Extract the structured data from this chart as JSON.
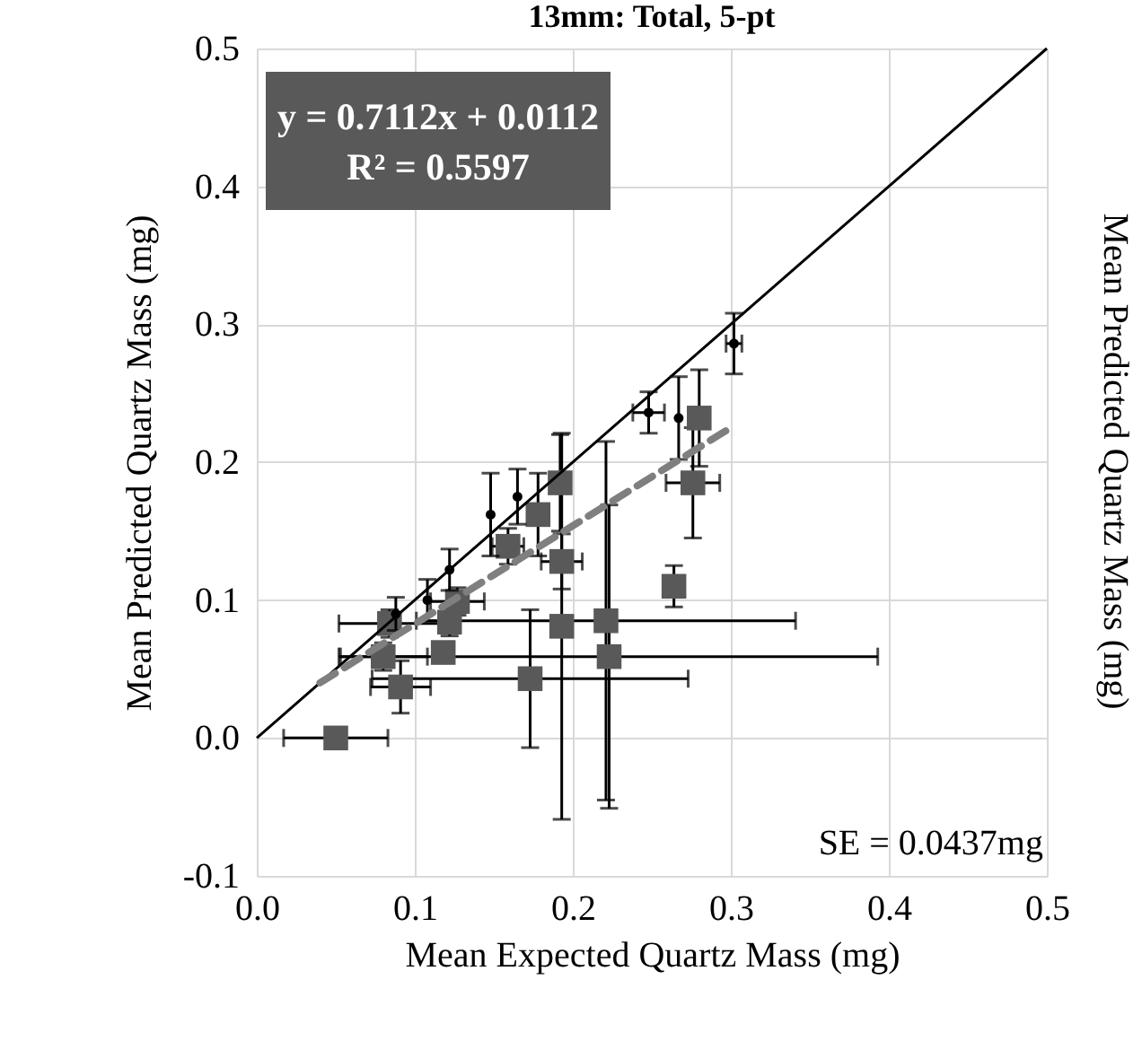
{
  "chart_data": {
    "type": "scatter",
    "title": "13mm: Total, 5-pt",
    "xlabel": "Mean Expected Quartz Mass (mg)",
    "ylabel": "Mean Predicted Quartz Mass (mg)",
    "y2label": "Mean Predicted Quartz Mass (mg)",
    "annotations": [
      "y = 0.7112x + 0.0112",
      "R² = 0.5597",
      "SE = 0.0437mg"
    ],
    "xlim": [
      0,
      0.5
    ],
    "ylim": [
      -0.1,
      0.5
    ],
    "xticks": [
      {
        "value": 0,
        "label": "0.0"
      },
      0.1,
      0.2,
      0.3,
      0.4,
      0.5
    ],
    "yticks": [
      -0.1,
      {
        "value": 0,
        "label": "0.0"
      },
      0.1,
      0.2,
      0.3,
      0.4,
      0.5
    ],
    "grid": true,
    "series": [
      {
        "type": "scatter",
        "marker": "square",
        "color": "#595959",
        "x": [
          0.05,
          0.091,
          0.08,
          0.084,
          0.118,
          0.122,
          0.127,
          0.173,
          0.193,
          0.193,
          0.159,
          0.178,
          0.192,
          0.221,
          0.223,
          0.264,
          0.276,
          0.28
        ],
        "values": [
          0.0,
          0.037,
          0.059,
          0.083,
          0.062,
          0.084,
          0.099,
          0.043,
          0.081,
          0.128,
          0.139,
          0.162,
          0.185,
          0.085,
          0.059,
          0.11,
          0.185,
          0.232
        ],
        "errors": [
          null,
          0.019,
          0.01,
          0.01,
          null,
          0.01,
          0.01,
          0.05,
          0.14,
          0.02,
          0.013,
          0.03,
          0.035,
          0.13,
          0.11,
          0.015,
          0.04,
          0.035
        ],
        "xerrors": [
          0.033,
          0.019,
          0.028,
          0.032,
          null,
          null,
          0.017,
          0.1,
          null,
          0.013,
          0.01,
          null,
          null,
          0.12,
          0.17,
          null,
          0.017,
          null
        ]
      },
      {
        "type": "scatter",
        "marker": "circle",
        "color": "#000000",
        "x": [
          0.088,
          0.108,
          0.122,
          0.148,
          0.165,
          0.248,
          0.267,
          0.302
        ],
        "values": [
          0.09,
          0.1,
          0.122,
          0.162,
          0.175,
          0.236,
          0.232,
          0.286
        ],
        "errors": [
          0.012,
          0.015,
          0.015,
          0.03,
          0.02,
          0.015,
          0.03,
          0.022
        ],
        "xerrors": [
          null,
          null,
          null,
          null,
          null,
          0.01,
          null,
          0.005
        ]
      },
      {
        "type": "line",
        "line_style": "solid",
        "color": "#000000",
        "x": [
          0,
          0.5
        ],
        "values": [
          0,
          0.5
        ]
      },
      {
        "type": "line",
        "line_style": "dashed",
        "color": "#7f7f7f",
        "x": [
          0.04,
          0.3
        ],
        "values": [
          0.04,
          0.225
        ]
      }
    ]
  }
}
